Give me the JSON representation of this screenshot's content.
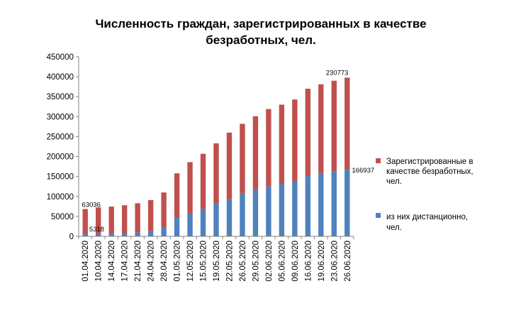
{
  "chart_data": {
    "type": "bar",
    "stacked": true,
    "title_lines": [
      "Численность граждан, зарегистрированных в качестве",
      "безработных, чел."
    ],
    "categories": [
      "01.04.2020",
      "10.04.2020",
      "14.04.2020",
      "17.04.2020",
      "21.04.2020",
      "24.04.2020",
      "28.04.2020",
      "01.05.2020",
      "12.05.2020",
      "15.05.2020",
      "19.05.2020",
      "22.05.2020",
      "26.05.2020",
      "29.05.2020",
      "02.06.2020",
      "05.06.2020",
      "09.06.2020",
      "16.06.2020",
      "19.06.2020",
      "23.06.2020",
      "26.06.2020"
    ],
    "series": [
      {
        "name": "из них дистанционно, чел.",
        "legend_lines": [
          "из них дистанционно,",
          "чел."
        ],
        "color": "#4f81bd",
        "values": [
          5318,
          5500,
          6500,
          8000,
          10000,
          13000,
          22000,
          46000,
          57000,
          69000,
          83000,
          93000,
          107000,
          117000,
          125000,
          131000,
          138000,
          151000,
          158000,
          163000,
          166937
        ]
      },
      {
        "name": "Зарегистрированные в качестве безработных, чел.",
        "legend_lines": [
          "Зарегистрированные в",
          "качестве безработных,",
          "чел."
        ],
        "color": "#c0504d",
        "values": [
          63036,
          67000,
          68000,
          70000,
          73000,
          78000,
          88000,
          112000,
          129000,
          138000,
          150000,
          167000,
          175000,
          184000,
          194000,
          199000,
          205000,
          219000,
          223000,
          227000,
          230773
        ]
      }
    ],
    "ylim": [
      0,
      450000
    ],
    "y_ticks": [
      "0",
      "50000",
      "100000",
      "150000",
      "200000",
      "250000",
      "300000",
      "350000",
      "400000",
      "450000"
    ],
    "data_labels": {
      "first_red": "63036",
      "first_blue": "5318",
      "last_red": "230773",
      "last_blue": "166937"
    },
    "legend_position": "right",
    "grid": false
  }
}
